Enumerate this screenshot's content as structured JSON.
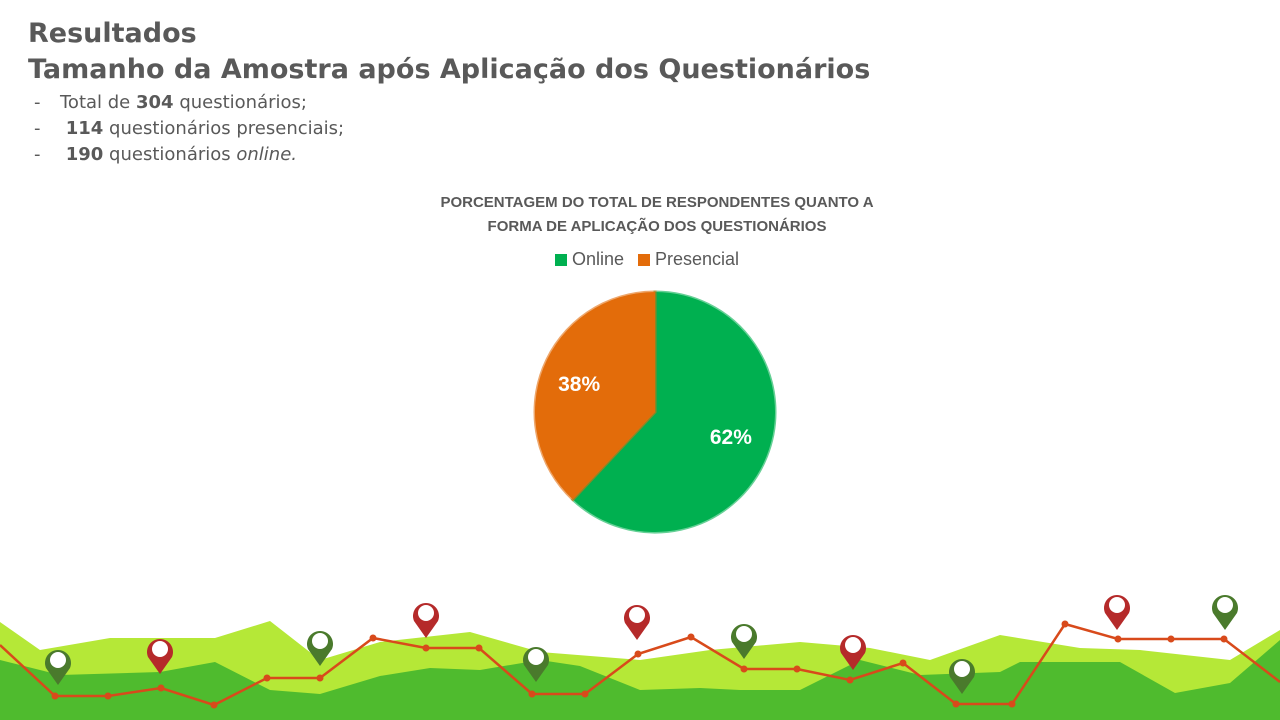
{
  "header": {
    "title": "Resultados",
    "subtitle": "Tamanho da Amostra após Aplicação dos Questionários",
    "bullet_marker": "-",
    "bullets": [
      {
        "before": "Total de",
        "bold": "304",
        "after": "questionários;"
      },
      {
        "bold": "114",
        "after": "questionários presenciais;"
      },
      {
        "bold": "190",
        "after": "questionários",
        "italic": "online."
      }
    ]
  },
  "chart_data": {
    "type": "pie",
    "title": [
      "PORCENTAGEM DO TOTAL DE RESPONDENTES QUANTO A",
      "FORMA DE APLICAÇÃO DOS QUESTIONÁRIOS"
    ],
    "categories": [
      "Online",
      "Presencial"
    ],
    "values": [
      62,
      38
    ],
    "value_labels": [
      "62%",
      "38%"
    ],
    "colors": [
      "#00b050",
      "#e36c0a"
    ],
    "legend": "top"
  }
}
